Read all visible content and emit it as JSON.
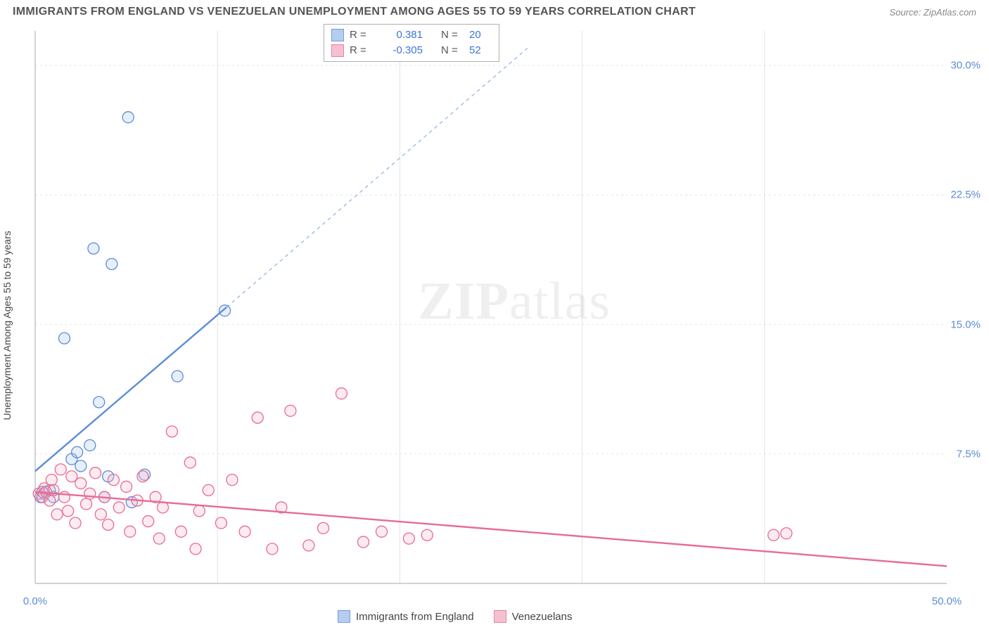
{
  "title": "IMMIGRANTS FROM ENGLAND VS VENEZUELAN UNEMPLOYMENT AMONG AGES 55 TO 59 YEARS CORRELATION CHART",
  "source": "Source: ZipAtlas.com",
  "watermark": {
    "zip": "ZIP",
    "atlas": "atlas"
  },
  "ylabel": "Unemployment Among Ages 55 to 59 years",
  "chart": {
    "type": "scatter",
    "xlim": [
      0,
      50
    ],
    "ylim": [
      0,
      32
    ],
    "xtick_labels": [
      {
        "value": 0,
        "label": "0.0%"
      },
      {
        "value": 50,
        "label": "50.0%"
      }
    ],
    "ytick_labels": [
      {
        "value": 7.5,
        "label": "7.5%"
      },
      {
        "value": 15.0,
        "label": "15.0%"
      },
      {
        "value": 22.5,
        "label": "22.5%"
      },
      {
        "value": 30.0,
        "label": "30.0%"
      }
    ],
    "grid_color": "#e3e3e3",
    "axis_color": "#b8b8b8",
    "background": "#ffffff",
    "xtick_color": "#5b8cd6",
    "ytick_color": "#5b8cd6",
    "marker_radius": 8,
    "marker_fill_opacity": 0.28,
    "xgrid_step": 10,
    "ygrid_values": [
      7.5,
      15.0,
      22.5,
      30.0
    ]
  },
  "series": [
    {
      "id": "england",
      "label": "Immigrants from England",
      "color_stroke": "#5b8cd6",
      "color_fill": "#a9c5ed",
      "stats": {
        "R": "0.381",
        "N": "20",
        "color": "#3b76d6"
      },
      "regression": {
        "solid": {
          "x1": 0,
          "y1": 6.5,
          "x2": 10.5,
          "y2": 16.0
        },
        "dashed": {
          "x1": 10.5,
          "y1": 16.0,
          "x2": 27,
          "y2": 31.0
        }
      },
      "points": [
        [
          0.3,
          5.0
        ],
        [
          0.4,
          5.3
        ],
        [
          0.5,
          5.2
        ],
        [
          0.8,
          5.4
        ],
        [
          1.0,
          5.0
        ],
        [
          1.6,
          14.2
        ],
        [
          2.0,
          7.2
        ],
        [
          2.3,
          7.6
        ],
        [
          2.5,
          6.8
        ],
        [
          3.0,
          8.0
        ],
        [
          3.2,
          19.4
        ],
        [
          3.5,
          10.5
        ],
        [
          4.0,
          6.2
        ],
        [
          4.2,
          18.5
        ],
        [
          5.1,
          27.0
        ],
        [
          5.3,
          4.7
        ],
        [
          6.0,
          6.3
        ],
        [
          7.8,
          12.0
        ],
        [
          10.4,
          15.8
        ],
        [
          3.8,
          5.0
        ]
      ]
    },
    {
      "id": "venezuelans",
      "label": "Venezuelans",
      "color_stroke": "#e86b92",
      "color_fill": "#f4b7c9",
      "stats": {
        "R": "-0.305",
        "N": "52",
        "color": "#3b76d6"
      },
      "regression": {
        "solid": {
          "x1": 0,
          "y1": 5.3,
          "x2": 50,
          "y2": 1.0
        },
        "dashed": null
      },
      "points": [
        [
          0.2,
          5.2
        ],
        [
          0.4,
          5.0
        ],
        [
          0.5,
          5.5
        ],
        [
          0.6,
          5.3
        ],
        [
          0.8,
          4.8
        ],
        [
          0.9,
          6.0
        ],
        [
          1.0,
          5.4
        ],
        [
          1.2,
          4.0
        ],
        [
          1.4,
          6.6
        ],
        [
          1.6,
          5.0
        ],
        [
          1.8,
          4.2
        ],
        [
          2.0,
          6.2
        ],
        [
          2.2,
          3.5
        ],
        [
          2.5,
          5.8
        ],
        [
          2.8,
          4.6
        ],
        [
          3.0,
          5.2
        ],
        [
          3.3,
          6.4
        ],
        [
          3.6,
          4.0
        ],
        [
          3.8,
          5.0
        ],
        [
          4.0,
          3.4
        ],
        [
          4.3,
          6.0
        ],
        [
          4.6,
          4.4
        ],
        [
          5.0,
          5.6
        ],
        [
          5.2,
          3.0
        ],
        [
          5.6,
          4.8
        ],
        [
          5.9,
          6.2
        ],
        [
          6.2,
          3.6
        ],
        [
          6.6,
          5.0
        ],
        [
          6.8,
          2.6
        ],
        [
          7.0,
          4.4
        ],
        [
          7.5,
          8.8
        ],
        [
          8.0,
          3.0
        ],
        [
          8.5,
          7.0
        ],
        [
          9.0,
          4.2
        ],
        [
          9.5,
          5.4
        ],
        [
          10.2,
          3.5
        ],
        [
          10.8,
          6.0
        ],
        [
          11.5,
          3.0
        ],
        [
          12.2,
          9.6
        ],
        [
          13.0,
          2.0
        ],
        [
          13.5,
          4.4
        ],
        [
          14.0,
          10.0
        ],
        [
          15.0,
          2.2
        ],
        [
          15.8,
          3.2
        ],
        [
          16.8,
          11.0
        ],
        [
          18.0,
          2.4
        ],
        [
          19.0,
          3.0
        ],
        [
          20.5,
          2.6
        ],
        [
          21.5,
          2.8
        ],
        [
          40.5,
          2.8
        ],
        [
          41.2,
          2.9
        ],
        [
          8.8,
          2.0
        ]
      ]
    }
  ],
  "legend_top": {
    "border_color": "#b0b0b0",
    "label_R": "R =",
    "label_N": "N ="
  }
}
